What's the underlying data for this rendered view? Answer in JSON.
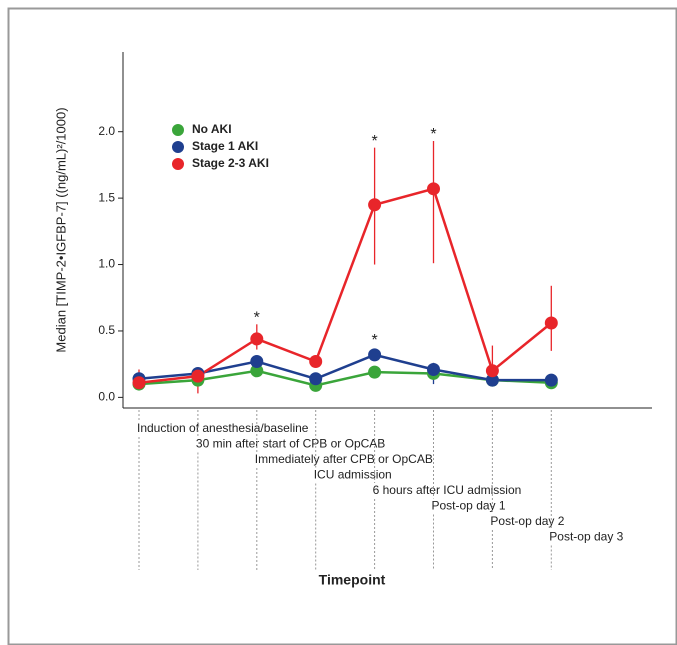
{
  "chart_data": {
    "type": "line",
    "y_label": "Median [TIMP-2•IGFBP-7] ((ng/mL)²/1000)",
    "x_label": "Timepoint",
    "categories": [
      "Induction of anesthesia/baseline",
      "30 min after start of CPB or OpCAB",
      "Immediately after CPB or OpCAB",
      "ICU admission",
      "6 hours after ICU admission",
      "Post-op day 1",
      "Post-op day 2",
      "Post-op day 3"
    ],
    "ylim": [
      -0.08,
      2.6
    ],
    "yticks": [
      {
        "value": 0,
        "label": "0.0"
      },
      0.5,
      {
        "value": 1,
        "label": "1.0"
      },
      1.5,
      {
        "value": 2,
        "label": "2.0"
      }
    ],
    "series": [
      {
        "name": "No AKI",
        "color": "#3aa53a",
        "values": [
          0.1,
          0.13,
          0.2,
          0.09,
          0.19,
          0.18,
          0.13,
          0.11
        ],
        "lower": [
          null,
          null,
          null,
          null,
          null,
          null,
          null,
          null
        ],
        "upper": [
          null,
          null,
          null,
          null,
          null,
          null,
          null,
          null
        ],
        "significance": [
          null,
          null,
          null,
          null,
          null,
          null,
          null,
          null
        ]
      },
      {
        "name": "Stage 1 AKI",
        "color": "#1f3f8f",
        "values": [
          0.14,
          0.18,
          0.27,
          0.14,
          0.32,
          0.21,
          0.13,
          0.13
        ],
        "lower": [
          null,
          null,
          null,
          null,
          null,
          0.1,
          null,
          null
        ],
        "upper": [
          null,
          null,
          null,
          null,
          null,
          0.26,
          null,
          null
        ],
        "significance": [
          null,
          null,
          null,
          null,
          "*",
          null,
          null,
          null
        ]
      },
      {
        "name": "Stage 2-3 AKI",
        "color": "#e8252a",
        "values": [
          0.11,
          0.16,
          0.44,
          0.27,
          1.45,
          1.57,
          0.2,
          0.56
        ],
        "lower": [
          0.06,
          0.03,
          0.36,
          null,
          1.0,
          1.01,
          0.1,
          0.35
        ],
        "upper": [
          0.21,
          0.2,
          0.55,
          null,
          1.88,
          1.93,
          0.39,
          0.84
        ],
        "significance": [
          null,
          null,
          "*",
          null,
          "*",
          "*",
          null,
          null
        ]
      }
    ]
  }
}
